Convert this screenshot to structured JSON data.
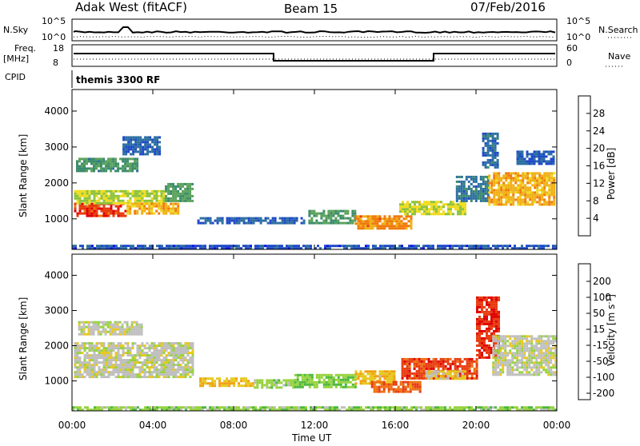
{
  "header": {
    "station": "Adak West (fitACF)",
    "beam": "Beam 15",
    "date": "07/Feb/2016"
  },
  "top_panels": {
    "nsky_label": "N.Sky",
    "nsky_ticks": [
      "10^5",
      "10^0"
    ],
    "nsearch_label": "N.Search",
    "nsearch_ticks": [
      "10^5",
      "10^0"
    ],
    "freq_label": "Freq.",
    "freq_unit": "[MHz]",
    "freq_ticks": [
      "18",
      "8"
    ],
    "nave_label": "Nave",
    "nave_ticks": [
      "60",
      "0"
    ],
    "cpid_label": "CPID",
    "cpid_value": "themis 3300 RF"
  },
  "colors": {
    "power_scale": [
      "#1010e8",
      "#1e48c8",
      "#2b6fa0",
      "#3a8a6a",
      "#5aa25a",
      "#8cc33c",
      "#f0dc1e",
      "#f0b014",
      "#ef7a0d",
      "#e83a10",
      "#e00000"
    ],
    "velocity_scale": [
      "#1e28d2",
      "#2a5ac8",
      "#1e8a3c",
      "#4ab83c",
      "#96d23c",
      "#bebebe",
      "#e6c81e",
      "#f0a010",
      "#ee7010",
      "#e83c10",
      "#e00000"
    ]
  },
  "chart_data": [
    {
      "type": "heatmap",
      "title": "Power",
      "xlabel": "",
      "ylabel": "Slant Range [km]",
      "x_ticks": [
        "00:00",
        "04:00",
        "08:00",
        "12:00",
        "16:00",
        "20:00",
        "00:00"
      ],
      "y_ticks": [
        "1000",
        "2000",
        "3000",
        "4000"
      ],
      "ylim": [
        150,
        4600
      ],
      "colorbar": {
        "label": "Power [dB]",
        "ticks": [
          "4",
          "8",
          "12",
          "16",
          "20",
          "24",
          "28"
        ],
        "range": [
          0,
          32
        ]
      },
      "regions": [
        {
          "t0": 0.1,
          "t1": 2.7,
          "r0": 1100,
          "r1": 1450,
          "value": 28
        },
        {
          "t0": 0.1,
          "t1": 4.6,
          "r0": 1450,
          "r1": 1800,
          "value": 17
        },
        {
          "t0": 2.7,
          "t1": 5.2,
          "r0": 1150,
          "r1": 1450,
          "value": 22
        },
        {
          "t0": 4.6,
          "t1": 6.0,
          "r0": 1500,
          "r1": 2000,
          "value": 12
        },
        {
          "t0": 0.2,
          "t1": 3.2,
          "r0": 2300,
          "r1": 2700,
          "value": 11
        },
        {
          "t0": 2.5,
          "t1": 4.3,
          "r0": 2800,
          "r1": 3300,
          "value": 6
        },
        {
          "t0": 6.2,
          "t1": 11.5,
          "r0": 850,
          "r1": 1050,
          "value": 6
        },
        {
          "t0": 11.7,
          "t1": 14.0,
          "r0": 850,
          "r1": 1250,
          "value": 12
        },
        {
          "t0": 14.0,
          "t1": 16.8,
          "r0": 750,
          "r1": 1100,
          "value": 24
        },
        {
          "t0": 16.2,
          "t1": 19.5,
          "r0": 1100,
          "r1": 1500,
          "value": 18
        },
        {
          "t0": 19.0,
          "t1": 20.6,
          "r0": 1500,
          "r1": 2200,
          "value": 8
        },
        {
          "t0": 20.3,
          "t1": 21.1,
          "r0": 2400,
          "r1": 3400,
          "value": 7
        },
        {
          "t0": 20.6,
          "t1": 23.9,
          "r0": 1400,
          "r1": 2300,
          "value": 22
        },
        {
          "t0": 22.0,
          "t1": 23.8,
          "r0": 2500,
          "r1": 2900,
          "value": 6
        },
        {
          "t0": 0.0,
          "t1": 23.9,
          "r0": 200,
          "r1": 280,
          "value": 5
        }
      ]
    },
    {
      "type": "heatmap",
      "title": "Velocity",
      "xlabel": "Time UT",
      "ylabel": "Slant Range [km]",
      "x_ticks": [
        "00:00",
        "04:00",
        "08:00",
        "12:00",
        "16:00",
        "20:00",
        "00:00"
      ],
      "y_ticks": [
        "1000",
        "2000",
        "3000",
        "4000"
      ],
      "ylim": [
        150,
        4600
      ],
      "colorbar": {
        "label": "Velocity [m s^-1]",
        "ticks": [
          "200",
          "100",
          "50",
          "15",
          "-15",
          "-50",
          "-100",
          "-200"
        ],
        "range": [
          -250,
          250
        ]
      },
      "regions": [
        {
          "t0": 0.1,
          "t1": 6.0,
          "r0": 1100,
          "r1": 2100,
          "value": 0
        },
        {
          "t0": 0.3,
          "t1": 3.5,
          "r0": 2300,
          "r1": 2700,
          "value": 0
        },
        {
          "t0": 6.3,
          "t1": 9.0,
          "r0": 850,
          "r1": 1100,
          "value": 60
        },
        {
          "t0": 9.0,
          "t1": 11.0,
          "r0": 780,
          "r1": 1050,
          "value": -40
        },
        {
          "t0": 11.0,
          "t1": 14.0,
          "r0": 800,
          "r1": 1200,
          "value": -60
        },
        {
          "t0": 14.0,
          "t1": 16.0,
          "r0": 900,
          "r1": 1300,
          "value": 60
        },
        {
          "t0": 14.8,
          "t1": 17.2,
          "r0": 700,
          "r1": 1000,
          "value": 150
        },
        {
          "t0": 16.3,
          "t1": 20.0,
          "r0": 1050,
          "r1": 1650,
          "value": 180
        },
        {
          "t0": 17.5,
          "t1": 19.5,
          "r0": 1050,
          "r1": 1300,
          "value": 40
        },
        {
          "t0": 20.0,
          "t1": 21.1,
          "r0": 1650,
          "r1": 3400,
          "value": 200
        },
        {
          "t0": 20.8,
          "t1": 24.0,
          "r0": 1200,
          "r1": 2300,
          "value": 0
        },
        {
          "t0": 0.0,
          "t1": 23.9,
          "r0": 200,
          "r1": 280,
          "value": -50
        }
      ]
    }
  ]
}
